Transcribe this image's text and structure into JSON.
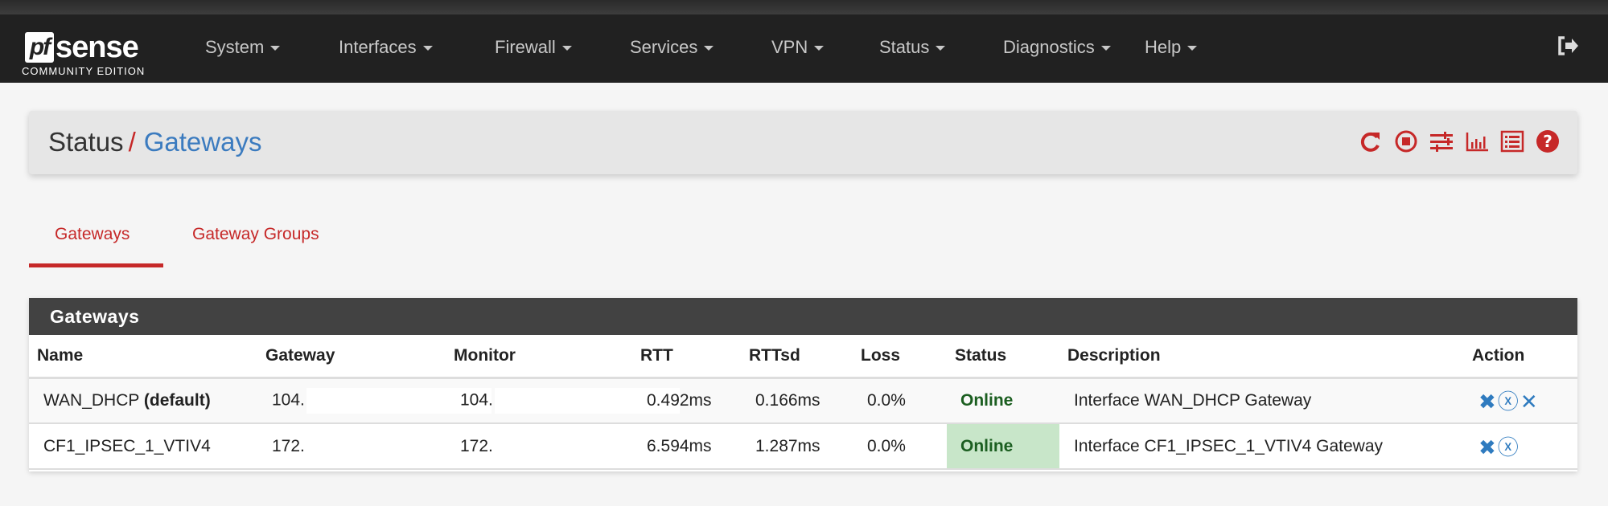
{
  "brand": {
    "logo_text": "pfsense",
    "edition": "COMMUNITY EDITION"
  },
  "nav": {
    "items": [
      "System",
      "Interfaces",
      "Firewall",
      "Services",
      "VPN",
      "Status",
      "Diagnostics",
      "Help"
    ],
    "logout_icon": "sign-out-icon"
  },
  "breadcrumb": {
    "parent": "Status",
    "separator": "/",
    "current": "Gateways",
    "icons": [
      "refresh-icon",
      "stop-circle-icon",
      "sliders-icon",
      "bar-chart-icon",
      "list-icon",
      "help-icon"
    ]
  },
  "tabs": [
    {
      "label": "Gateways",
      "active": true
    },
    {
      "label": "Gateway Groups",
      "active": false
    }
  ],
  "panel": {
    "title": "Gateways",
    "columns": [
      "Name",
      "Gateway",
      "Monitor",
      "RTT",
      "RTTsd",
      "Loss",
      "Status",
      "Description",
      "Action"
    ],
    "rows": [
      {
        "name": "WAN_DHCP",
        "name_suffix": "(default)",
        "gateway": "104.",
        "monitor": "104.",
        "rtt": "0.492ms",
        "rttsd": "0.166ms",
        "loss": "0.0%",
        "status": "Online",
        "description": "Interface WAN_DHCP Gateway",
        "actions": [
          "delete-circle-icon",
          "disable-circle-icon",
          "remove-icon"
        ]
      },
      {
        "name": "CF1_IPSEC_1_VTIV4",
        "gateway": "172.",
        "monitor": "172.",
        "rtt": "6.594ms",
        "rttsd": "1.287ms",
        "loss": "0.0%",
        "status": "Online",
        "description": "Interface CF1_IPSEC_1_VTIV4 Gateway",
        "actions": [
          "delete-circle-icon",
          "disable-circle-icon"
        ]
      }
    ]
  },
  "colors": {
    "accent": "#c62828",
    "link": "#3b7bbf",
    "online_bg": "#c8e6c9",
    "online_text": "#1b5e20",
    "navbar": "#212121"
  }
}
